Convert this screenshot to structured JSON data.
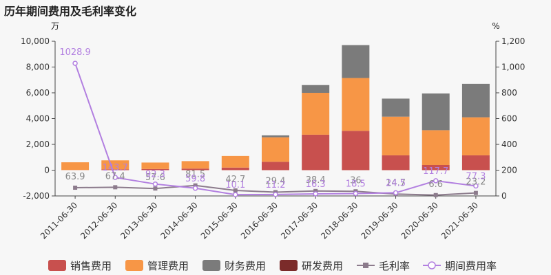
{
  "title": "历年期间费用及毛利率变化",
  "chart_data": {
    "type": "bar",
    "stacked": true,
    "left_unit": "万",
    "right_unit": "%",
    "categories": [
      "2011-06-30",
      "2012-06-30",
      "2013-06-30",
      "2014-06-30",
      "2015-06-30",
      "2016-06-30",
      "2017-06-30",
      "2018-06-30",
      "2019-06-30",
      "2020-06-30",
      "2021-06-30"
    ],
    "left_axis": {
      "min": -2000,
      "max": 10000,
      "ticks": [
        -2000,
        0,
        2000,
        4000,
        6000,
        8000,
        10000
      ],
      "tick_labels": [
        "-2,000",
        "0",
        "2,000",
        "4,000",
        "6,000",
        "8,000",
        "10,000"
      ]
    },
    "right_axis": {
      "min": 0,
      "max": 1200,
      "ticks": [
        0,
        200,
        400,
        600,
        800,
        1000,
        1200
      ],
      "tick_labels": [
        "0",
        "200",
        "400",
        "600",
        "800",
        "1,000",
        "1,200"
      ]
    },
    "series": [
      {
        "name": "销售费用",
        "kind": "bar",
        "axis": "left",
        "color": "#c8504e",
        "values": [
          10,
          60,
          90,
          120,
          200,
          650,
          2750,
          3050,
          1150,
          400,
          1150
        ]
      },
      {
        "name": "管理费用",
        "kind": "bar",
        "axis": "left",
        "color": "#f79646",
        "values": [
          600,
          700,
          500,
          580,
          900,
          1900,
          3250,
          4100,
          3000,
          2700,
          2950
        ]
      },
      {
        "name": "财务费用",
        "kind": "bar",
        "axis": "left",
        "color": "#7b7b7b",
        "values": [
          0,
          0,
          0,
          0,
          0,
          150,
          600,
          2550,
          1400,
          2850,
          2600
        ]
      },
      {
        "name": "研发费用",
        "kind": "bar",
        "axis": "left",
        "color": "#7b2b2a",
        "values": [
          0,
          0,
          0,
          0,
          0,
          0,
          0,
          0,
          0,
          0,
          0
        ]
      },
      {
        "name": "毛利率",
        "kind": "line",
        "axis": "right",
        "color": "#8c7b8c",
        "values": [
          63.9,
          67.4,
          57.6,
          81.5,
          42.7,
          29.4,
          38.4,
          36,
          14.7,
          6.6,
          23.2
        ],
        "labels": [
          "63.9",
          "67.4",
          "57.6",
          "81.5",
          "42.7",
          "29.4",
          "38.4",
          "36",
          "14.7",
          "6.6",
          "23.2"
        ]
      },
      {
        "name": "期间费用率",
        "kind": "line",
        "axis": "right",
        "color": "#b27fe0",
        "values": [
          1028.9,
          143.7,
          92.3,
          59.8,
          10.1,
          11.2,
          16.3,
          18.5,
          24.5,
          117.7,
          77.3
        ],
        "labels": [
          "1028.9",
          "143.7",
          "92.3",
          "59.8",
          "10.1",
          "11.2",
          "16.3",
          "18.5",
          "24.5",
          "117.7",
          "77.3"
        ]
      }
    ],
    "legend_position": "bottom",
    "grid": false
  }
}
